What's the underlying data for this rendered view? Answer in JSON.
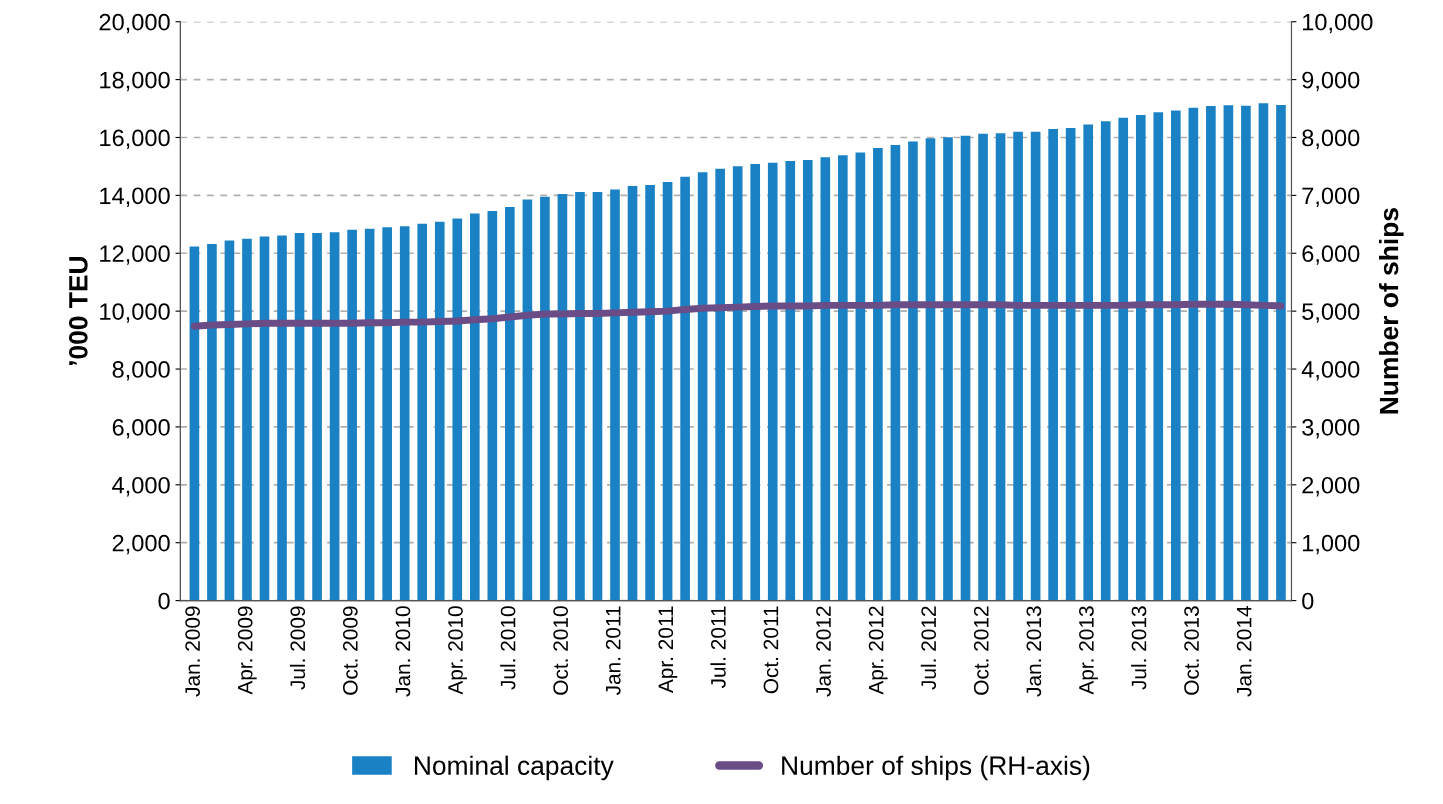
{
  "chart_data": {
    "type": "bar",
    "ylabel": "’000 TEU",
    "y2label": "Number of ships",
    "categories": [
      "Jan. 2009",
      null,
      null,
      "Apr. 2009",
      null,
      null,
      "Jul. 2009",
      null,
      null,
      "Oct. 2009",
      null,
      null,
      "Jan. 2010",
      null,
      null,
      "Apr. 2010",
      null,
      null,
      "Jul. 2010",
      null,
      null,
      "Oct. 2010",
      null,
      null,
      "Jan. 2011",
      null,
      null,
      "Apr. 2011",
      null,
      null,
      "Jul. 2011",
      null,
      null,
      "Oct. 2011",
      null,
      null,
      "Jan. 2012",
      null,
      null,
      "Apr. 2012",
      null,
      null,
      "Jul. 2012",
      null,
      null,
      "Oct. 2012",
      null,
      null,
      "Jan. 2013",
      null,
      null,
      "Apr. 2013",
      null,
      null,
      "Jul. 2013",
      null,
      null,
      "Oct. 2013",
      null,
      null,
      "Jan. 2014",
      null,
      null
    ],
    "series": [
      {
        "name": "Nominal capacity",
        "color": "#1a82c4",
        "values": [
          12230,
          12320,
          12440,
          12500,
          12580,
          12610,
          12700,
          12700,
          12730,
          12810,
          12850,
          12900,
          12930,
          13020,
          13090,
          13200,
          13370,
          13460,
          13600,
          13860,
          13950,
          14050,
          14120,
          14120,
          14200,
          14320,
          14360,
          14460,
          14640,
          14800,
          14920,
          15010,
          15080,
          15130,
          15190,
          15220,
          15320,
          15390,
          15480,
          15640,
          15740,
          15860,
          15970,
          16010,
          16060,
          16130,
          16150,
          16200,
          16200,
          16290,
          16330,
          16450,
          16560,
          16680,
          16780,
          16870,
          16930,
          17030,
          17090,
          17110,
          17100,
          17180,
          17120
        ]
      },
      {
        "name": "Number of ships (RH-axis)",
        "type": "line",
        "axis": "y2",
        "color": "#6a4c87",
        "values": [
          4740,
          4760,
          4770,
          4780,
          4790,
          4790,
          4790,
          4790,
          4790,
          4790,
          4800,
          4800,
          4810,
          4810,
          4820,
          4830,
          4850,
          4870,
          4900,
          4930,
          4950,
          4950,
          4960,
          4960,
          4970,
          4980,
          4990,
          5000,
          5030,
          5050,
          5060,
          5070,
          5080,
          5090,
          5090,
          5090,
          5100,
          5100,
          5100,
          5100,
          5110,
          5110,
          5110,
          5110,
          5110,
          5110,
          5110,
          5100,
          5100,
          5100,
          5100,
          5100,
          5100,
          5100,
          5110,
          5110,
          5110,
          5120,
          5120,
          5120,
          5110,
          5100,
          5090
        ]
      }
    ],
    "ylim": [
      0,
      20000
    ],
    "yticks": [
      {
        "value": 0,
        "label": "0"
      },
      {
        "value": 2000,
        "label": "2,000"
      },
      {
        "value": 4000,
        "label": "4,000"
      },
      {
        "value": 6000,
        "label": "6,000"
      },
      {
        "value": 8000,
        "label": "8,000"
      },
      {
        "value": 10000,
        "label": "10,000"
      },
      {
        "value": 12000,
        "label": "12,000"
      },
      {
        "value": 14000,
        "label": "14,000"
      },
      {
        "value": 16000,
        "label": "16,000"
      },
      {
        "value": 18000,
        "label": "18,000"
      },
      {
        "value": 20000,
        "label": "20,000"
      }
    ],
    "y2lim": [
      0,
      10000
    ],
    "y2ticks": [
      {
        "value": 0,
        "label": "0"
      },
      {
        "value": 1000,
        "label": "1,000"
      },
      {
        "value": 2000,
        "label": "2,000"
      },
      {
        "value": 3000,
        "label": "3,000"
      },
      {
        "value": 4000,
        "label": "4,000"
      },
      {
        "value": 5000,
        "label": "5,000"
      },
      {
        "value": 6000,
        "label": "6,000"
      },
      {
        "value": 7000,
        "label": "7,000"
      },
      {
        "value": 8000,
        "label": "8,000"
      },
      {
        "value": 9000,
        "label": "9,000"
      },
      {
        "value": 10000,
        "label": "10,000"
      }
    ],
    "grid": "y",
    "legend": "bottom",
    "marker": "none",
    "line_style": "solid"
  }
}
